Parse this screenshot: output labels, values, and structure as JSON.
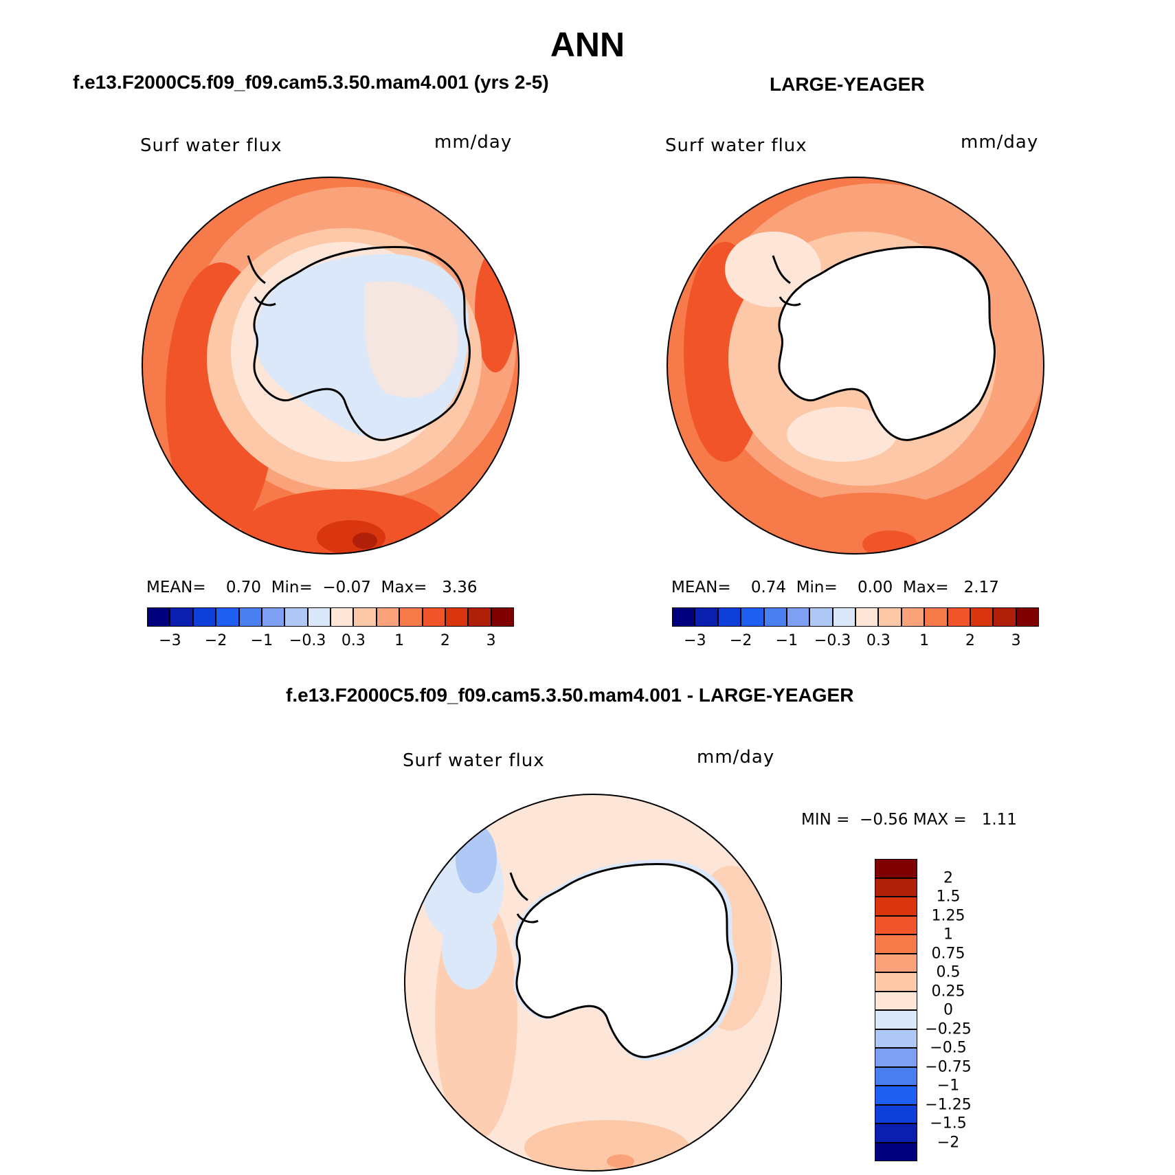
{
  "title": "ANN",
  "panels": {
    "left": {
      "case_title": "f.e13.F2000C5.f09_f09.cam5.3.50.mam4.001 (yrs 2-5)",
      "variable": "Surf water flux",
      "units": "mm/day",
      "stats": {
        "mean_label": "MEAN=",
        "mean": "0.70",
        "min_label": "Min=",
        "min": "−0.07",
        "max_label": "Max=",
        "max": "3.36"
      }
    },
    "right": {
      "case_title": "LARGE-YEAGER",
      "variable": "Surf water flux",
      "units": "mm/day",
      "stats": {
        "mean_label": "MEAN=",
        "mean": "0.74",
        "min_label": "Min=",
        "min": "0.00",
        "max_label": "Max=",
        "max": "2.17"
      }
    },
    "diff": {
      "case_title": "f.e13.F2000C5.f09_f09.cam5.3.50.mam4.001 - LARGE-YEAGER",
      "variable": "Surf water flux",
      "units": "mm/day",
      "stats": {
        "min_label": "MIN =",
        "min": "−0.56",
        "max_label": "MAX =",
        "max": "1.11"
      }
    }
  },
  "colorbar_abs": {
    "colors": [
      "#00007f",
      "#0a1fb0",
      "#0f3fd9",
      "#1f5ff2",
      "#4a7ff2",
      "#7f9ff2",
      "#b0c8f5",
      "#dbe8fa",
      "#fde6d8",
      "#fcc8a8",
      "#faa27a",
      "#f77b4a",
      "#f2542a",
      "#d9360f",
      "#b01f0a",
      "#7f0000"
    ],
    "labels": [
      "−3",
      "−2",
      "−1",
      "−0.3",
      "0.3",
      "1",
      "2",
      "3"
    ]
  },
  "colorbar_diff": {
    "colors": [
      "#7f0000",
      "#b01f0a",
      "#d9360f",
      "#f2542a",
      "#f77b4a",
      "#faa27a",
      "#fcc8a8",
      "#fde6d8",
      "#dbe8fa",
      "#b0c8f5",
      "#7f9ff2",
      "#4a7ff2",
      "#1f5ff2",
      "#0f3fd9",
      "#0a1fb0",
      "#00007f"
    ],
    "labels": [
      "2",
      "1.5",
      "1.25",
      "1",
      "0.75",
      "0.5",
      "0.25",
      "0",
      "−0.25",
      "−0.5",
      "−0.75",
      "−1",
      "−1.25",
      "−1.5",
      "−2"
    ]
  }
}
